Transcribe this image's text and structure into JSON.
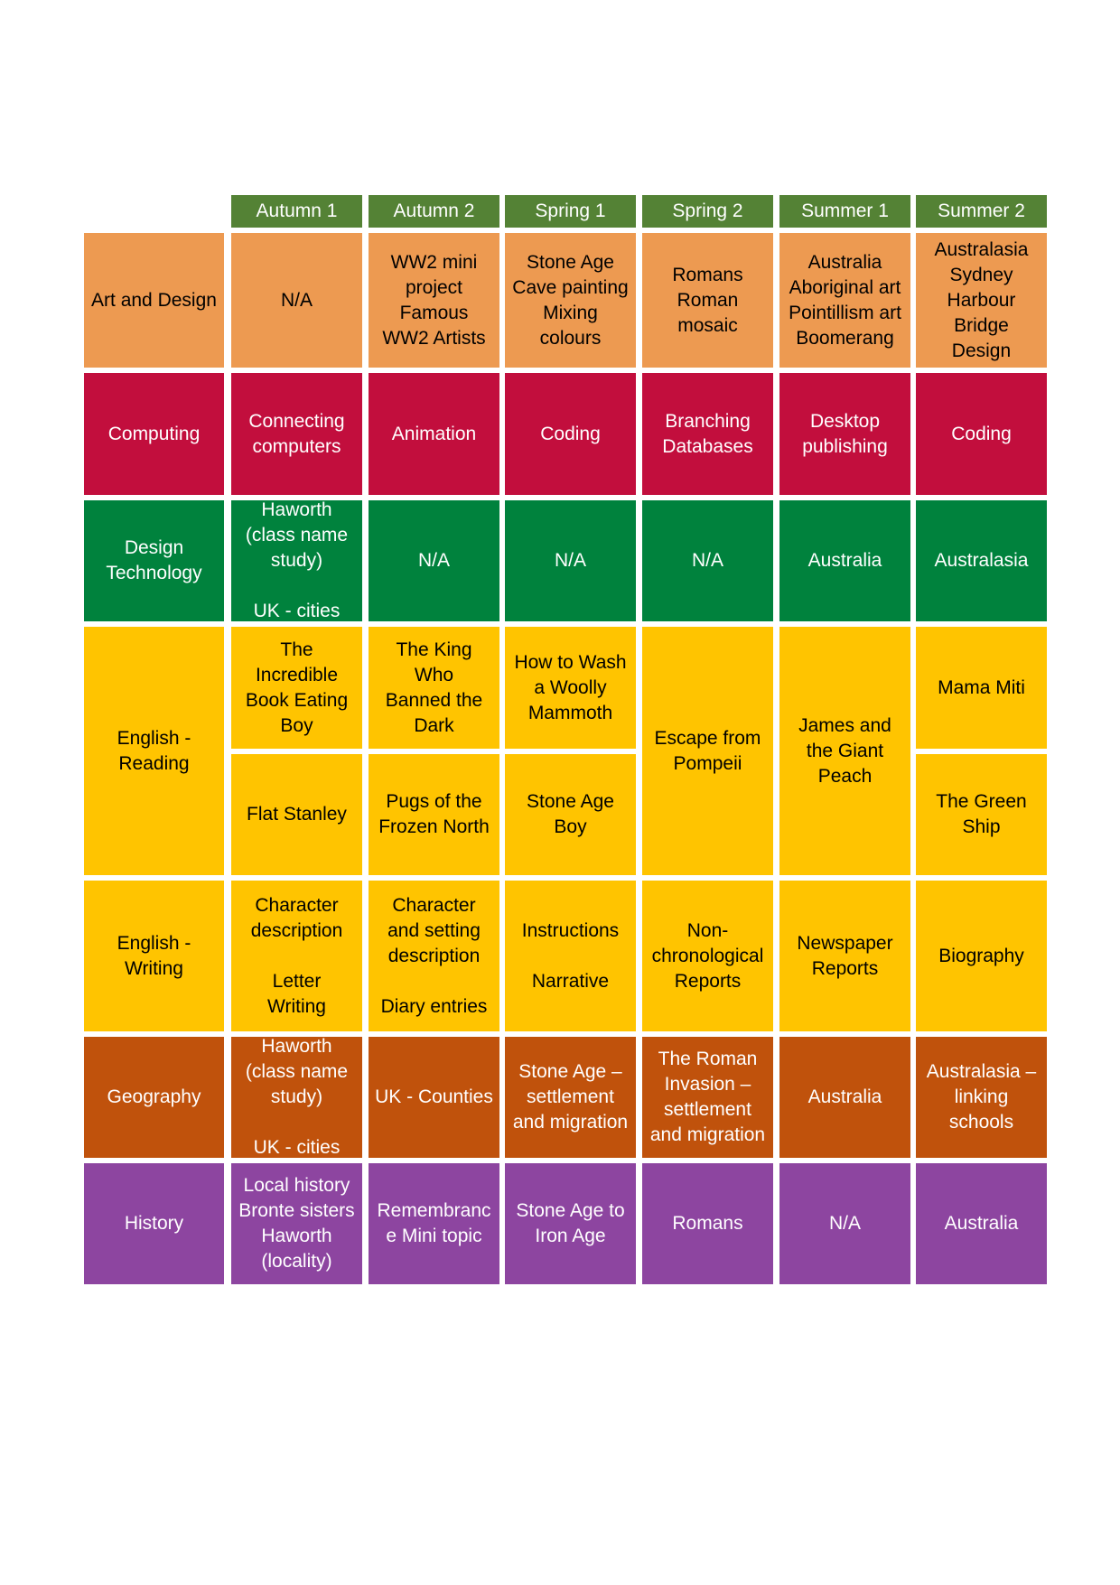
{
  "colors": {
    "header": "#548235",
    "art": "#ED9A51",
    "computing": "#C20E3D",
    "dt": "#00823D",
    "english": "#FFC400",
    "geography": "#C0520C",
    "history": "#8D45A0"
  },
  "headers": [
    "Autumn 1",
    "Autumn 2",
    "Spring 1",
    "Spring 2",
    "Summer 1",
    "Summer 2"
  ],
  "subjects": {
    "art": "Art and Design",
    "computing": "Computing",
    "dt": "Design\nTechnology",
    "reading": "English -\nReading",
    "writing": "English -\nWriting",
    "geography": "Geography",
    "history": "History"
  },
  "art": [
    "N/A",
    "WW2 mini\nproject\nFamous\nWW2 Artists",
    "Stone Age\nCave painting\nMixing\ncolours",
    "Romans\nRoman\nmosaic",
    "Australia\nAboriginal art\nPointillism art\nBoomerang",
    "Australasia\nSydney\nHarbour\nBridge\nDesign"
  ],
  "computing": [
    "Connecting\ncomputers",
    "Animation",
    "Coding",
    "Branching\nDatabases",
    "Desktop\npublishing",
    "Coding"
  ],
  "dt": [
    "Haworth\n(class name\nstudy)\n\nUK - cities",
    "N/A",
    "N/A",
    "N/A",
    "Australia",
    "Australasia"
  ],
  "reading_top": [
    "The\nIncredible\nBook Eating\nBoy",
    "The King Who\nBanned the\nDark",
    "How to Wash\na Woolly\nMammoth",
    "Mama Miti"
  ],
  "reading_bottom": [
    "Flat Stanley",
    "Pugs of the\nFrozen North",
    "Stone Age\nBoy",
    "The Green\nShip"
  ],
  "reading_full": [
    "Escape from\nPompeii",
    "James and\nthe Giant\nPeach"
  ],
  "writing": [
    "Character\ndescription\n\nLetter\nWriting",
    "Character\nand setting\ndescription\n\nDiary entries",
    "Instructions\n\nNarrative",
    "Non-\nchronological\nReports",
    "Newspaper\nReports",
    "Biography"
  ],
  "geography": [
    "Haworth\n(class name\nstudy)\n\nUK - cities",
    "UK - Counties",
    "Stone Age –\nsettlement\nand migration",
    "The Roman\nInvasion –\nsettlement\nand migration",
    "Australia",
    "Australasia –\nlinking schools"
  ],
  "history": [
    "Local history\nBronte sisters\nHaworth\n(locality)",
    "Remembranc\ne Mini topic",
    "Stone Age to\nIron Age",
    "Romans",
    "N/A",
    "Australia"
  ]
}
